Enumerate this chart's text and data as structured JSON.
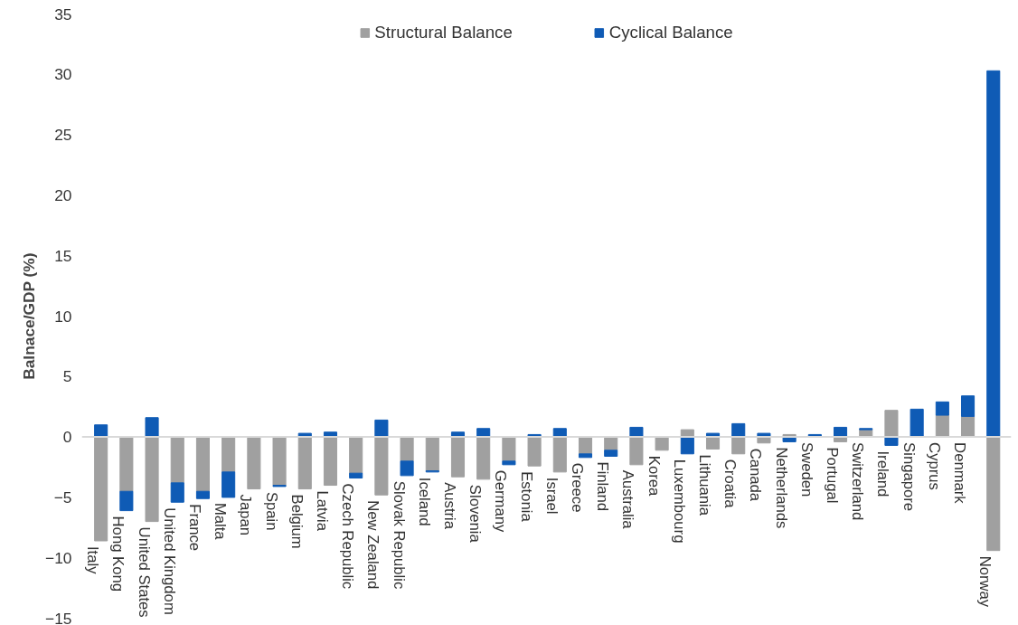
{
  "chart_data": {
    "type": "bar",
    "stacked": true,
    "ylabel": "Balnace/GDP (%)",
    "categories": [
      "Italy",
      "Hong Kong",
      "United States",
      "United Kingdom",
      "France",
      "Malta",
      "Japan",
      "Spain",
      "Belgium",
      "Latvia",
      "Czech Republic",
      "New Zealand",
      "Slovak Republic",
      "Iceland",
      "Austria",
      "Slovenia",
      "Germany",
      "Estonia",
      "Israel",
      "Greece",
      "Finland",
      "Australia",
      "Korea",
      "Luxembourg",
      "Lithuania",
      "Croatia",
      "Canada",
      "Netherlands",
      "Sweden",
      "Portugal",
      "Switzerland",
      "Ireland",
      "Singapore",
      "Cyprus",
      "Denmark",
      "Norway"
    ],
    "series": [
      {
        "name": "Structural Balance",
        "color": "#a0a0a0",
        "values": [
          -8.6,
          -4.5,
          -7.0,
          -3.8,
          -4.5,
          -2.9,
          -4.3,
          -4.0,
          -4.3,
          -4.0,
          -3.0,
          -4.8,
          -2.0,
          -2.8,
          -3.3,
          -3.5,
          -2.0,
          -2.4,
          -2.9,
          -1.4,
          -1.1,
          -2.3,
          -1.1,
          0.6,
          -1.0,
          -1.4,
          -0.5,
          0.2,
          0,
          -0.4,
          0.6,
          2.2,
          0,
          1.8,
          1.7,
          -9.4
        ]
      },
      {
        "name": "Cyclical Balance",
        "color": "#0f5bb5",
        "values": [
          1.0,
          -1.6,
          1.6,
          -1.6,
          -0.6,
          -2.1,
          0,
          -0.1,
          0.3,
          0.4,
          -0.4,
          1.4,
          -1.2,
          -0.1,
          0.4,
          0.7,
          -0.3,
          0.2,
          0.7,
          -0.3,
          -0.5,
          0.8,
          0,
          -1.4,
          0.3,
          1.1,
          0.3,
          -0.4,
          0.2,
          0.8,
          0.1,
          -0.7,
          2.3,
          1.1,
          1.7,
          30.3
        ]
      }
    ],
    "ylim": [
      -15,
      35
    ],
    "yticks": [
      -15,
      -10,
      -5,
      0,
      5,
      10,
      15,
      20,
      25,
      30,
      35
    ],
    "grid": false,
    "legend": "top"
  }
}
